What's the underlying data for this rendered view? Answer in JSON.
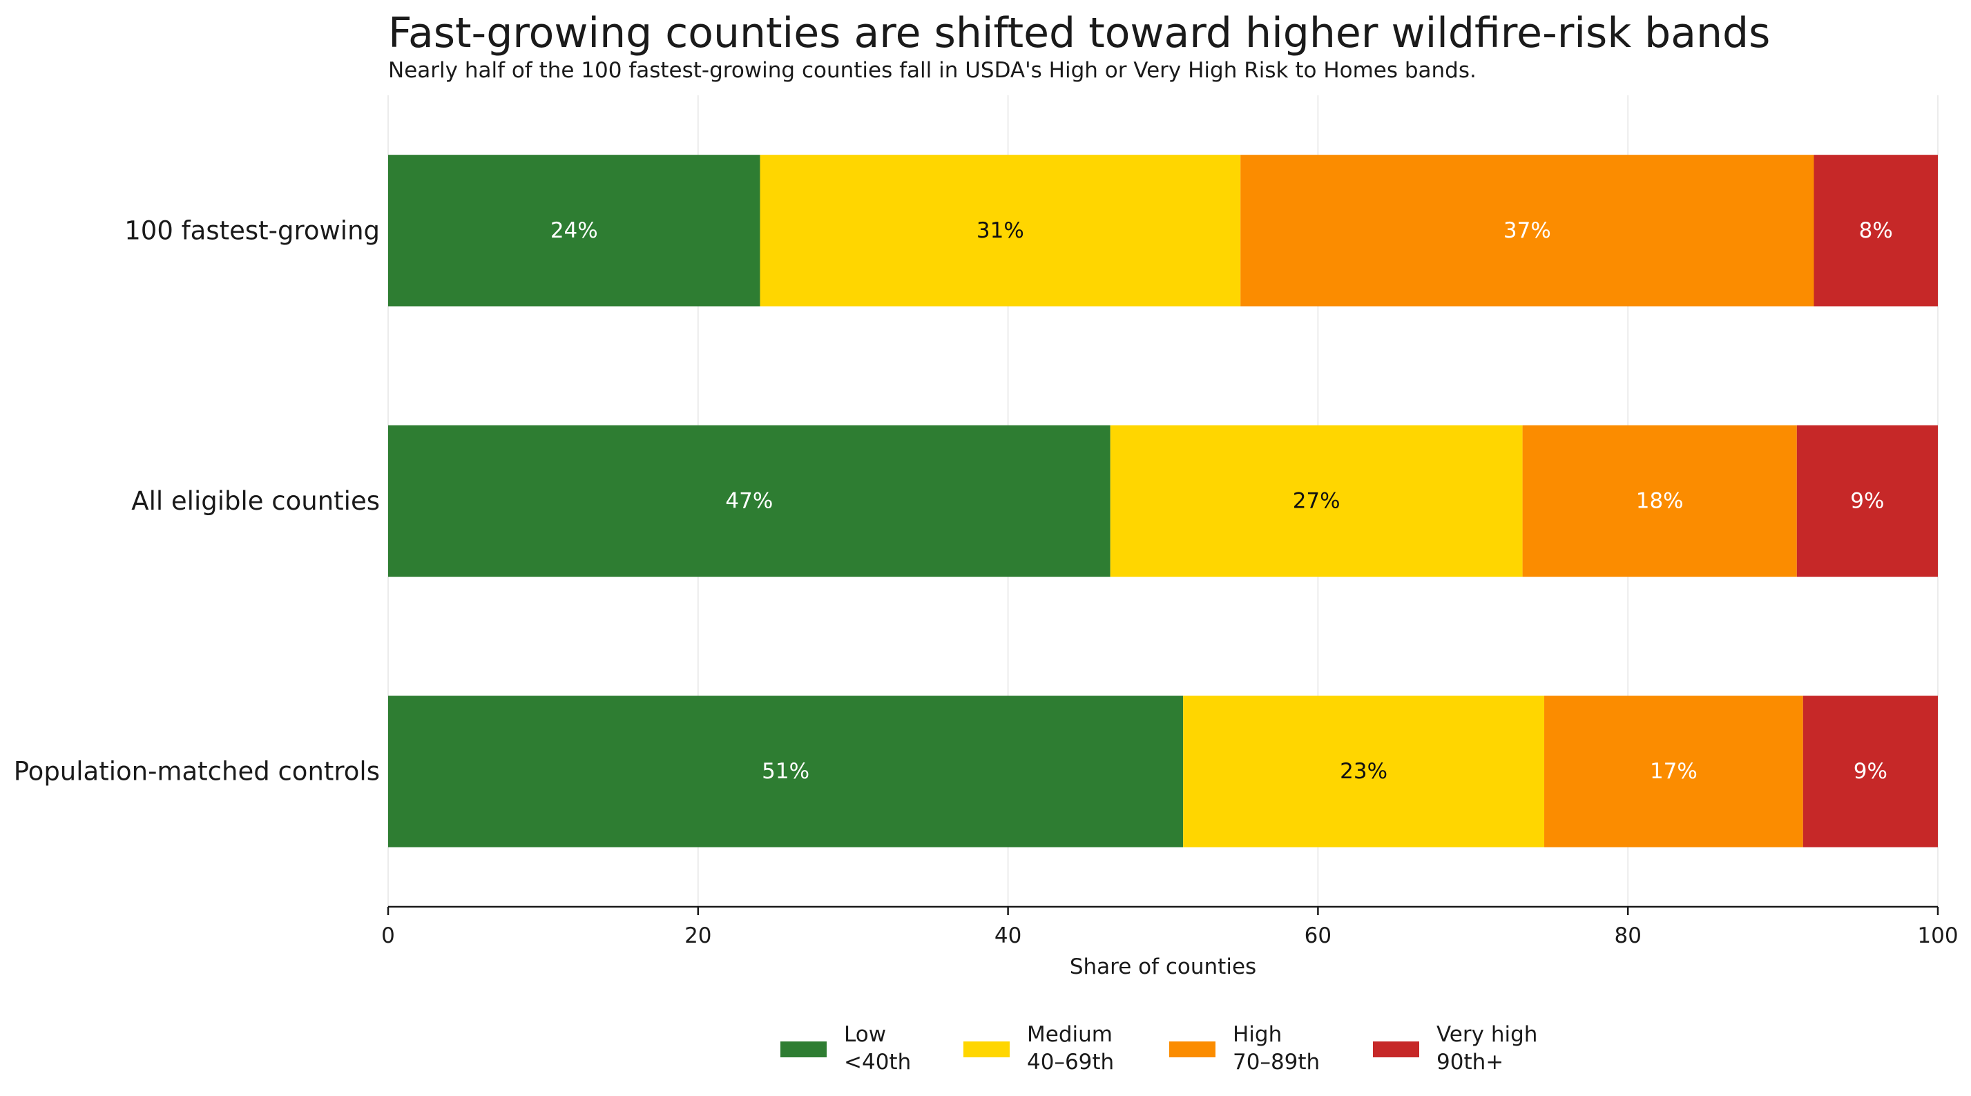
{
  "chart_data": {
    "type": "bar",
    "orientation": "horizontal",
    "stacked": true,
    "title": "Fast-growing counties are shifted toward higher wildfire-risk bands",
    "subtitle": "Nearly half of the 100 fastest-growing counties fall in USDA's High or Very High Risk to Homes bands.",
    "xlabel": "Share of counties",
    "ylabel": "",
    "xlim": [
      0,
      100
    ],
    "xticks": [
      0,
      20,
      40,
      60,
      80,
      100
    ],
    "grid": true,
    "legend_position": "bottom-center",
    "categories": [
      "100 fastest-growing",
      "All eligible counties",
      "Population-matched controls"
    ],
    "series": [
      {
        "name": "Low",
        "sublabel": "<40th",
        "color": "#2e7d32",
        "label_color": "#ffffff",
        "values": [
          24,
          46.6,
          51.3
        ],
        "labels": [
          "24%",
          "47%",
          "51%"
        ]
      },
      {
        "name": "Medium",
        "sublabel": "40–69th",
        "color": "#ffd600",
        "label_color": "#111111",
        "values": [
          31,
          26.6,
          23.3
        ],
        "labels": [
          "31%",
          "27%",
          "23%"
        ]
      },
      {
        "name": "High",
        "sublabel": "70–89th",
        "color": "#fb8c00",
        "label_color": "#ffffff",
        "values": [
          37,
          17.7,
          16.7
        ],
        "labels": [
          "37%",
          "18%",
          "17%"
        ]
      },
      {
        "name": "Very high",
        "sublabel": "90th+",
        "color": "#c62828",
        "label_color": "#ffffff",
        "values": [
          8,
          9.1,
          8.7
        ],
        "labels": [
          "8%",
          "9%",
          "9%"
        ]
      }
    ]
  }
}
